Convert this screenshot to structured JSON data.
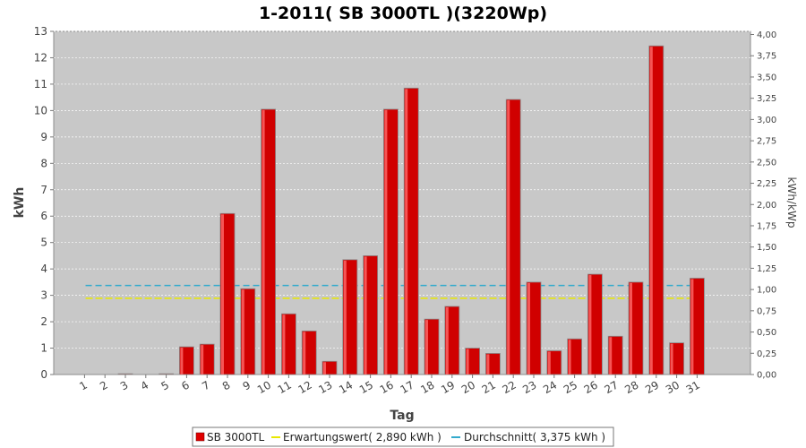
{
  "chart_data": {
    "type": "bar",
    "title": "1-2011( SB 3000TL )(3220Wp)",
    "xlabel": "Tag",
    "ylabel": "kWh",
    "ylabel_right": "kWh/kWp",
    "categories": [
      "1",
      "2",
      "3",
      "4",
      "5",
      "6",
      "7",
      "8",
      "9",
      "10",
      "11",
      "12",
      "13",
      "14",
      "15",
      "16",
      "17",
      "18",
      "19",
      "20",
      "21",
      "22",
      "23",
      "24",
      "25",
      "26",
      "27",
      "28",
      "29",
      "30",
      "31"
    ],
    "ylim": [
      0,
      13
    ],
    "yticks": [
      "0",
      "1",
      "2",
      "3",
      "4",
      "5",
      "6",
      "7",
      "8",
      "9",
      "10",
      "11",
      "12",
      "13"
    ],
    "ylim_right": [
      0,
      4.037
    ],
    "yticks_right": [
      "0,00",
      "0,25",
      "0,50",
      "0,75",
      "1,00",
      "1,25",
      "1,50",
      "1,75",
      "2,00",
      "2,25",
      "2,50",
      "2,75",
      "3,00",
      "3,25",
      "3,50",
      "3,75",
      "4,00"
    ],
    "series": [
      {
        "name": "SB 3000TL",
        "color": "#e00000",
        "values": [
          0,
          0,
          0.03,
          0,
          0.03,
          1.05,
          1.15,
          6.1,
          3.25,
          10.05,
          2.3,
          1.65,
          0.5,
          4.35,
          4.5,
          10.05,
          10.85,
          2.1,
          2.58,
          1.0,
          0.8,
          10.42,
          3.5,
          0.9,
          1.35,
          3.8,
          1.45,
          3.5,
          12.45,
          1.2,
          3.65
        ]
      }
    ],
    "reference_lines": [
      {
        "name": "Erwartungswert( 2,890 kWh )",
        "value": 2.89,
        "color": "#e8e800"
      },
      {
        "name": "Durchschnitt( 3,375 kWh )",
        "value": 3.375,
        "color": "#33aacc"
      }
    ],
    "grid": true,
    "legend_position": "bottom"
  }
}
